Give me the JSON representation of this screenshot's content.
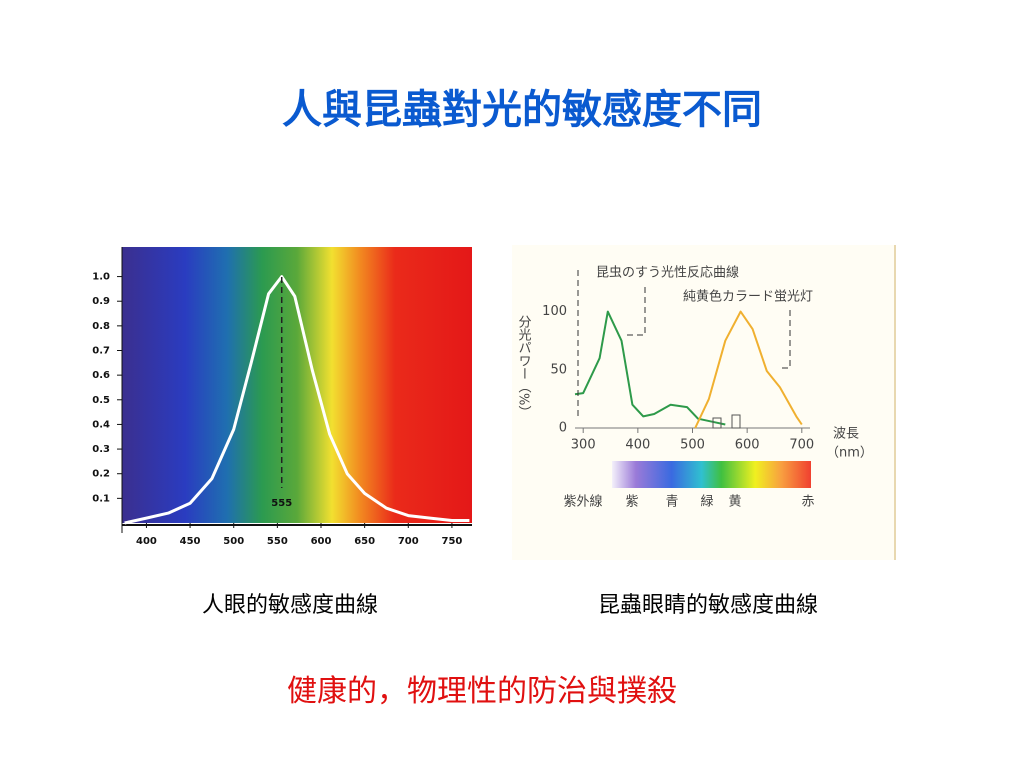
{
  "slide": {
    "title": "人與昆蟲對光的敏感度不同",
    "captions": [
      "人眼的敏感度曲線",
      "昆蟲眼睛的敏感度曲線"
    ],
    "footer": "健康的，物理性的防治與撲殺"
  },
  "chart_data": [
    {
      "type": "line",
      "x": [
        375,
        400,
        425,
        450,
        475,
        500,
        520,
        540,
        555,
        570,
        590,
        610,
        630,
        650,
        675,
        700,
        725,
        750,
        770
      ],
      "series": [
        {
          "color": "#ffffff",
          "values": [
            0.0,
            0.02,
            0.04,
            0.08,
            0.18,
            0.38,
            0.65,
            0.93,
            1.0,
            0.92,
            0.62,
            0.36,
            0.2,
            0.12,
            0.06,
            0.03,
            0.02,
            0.01,
            0.01
          ]
        }
      ],
      "marker_x": 555,
      "xlim": [
        372,
        773
      ],
      "ylim": [
        0,
        1.12
      ],
      "xticks": [
        400,
        450,
        500,
        550,
        600,
        650,
        700,
        750
      ],
      "yticks": [
        0.1,
        0.2,
        0.3,
        0.4,
        0.5,
        0.6,
        0.7,
        0.8,
        0.9,
        {
          "value": 1,
          "label": "1.0"
        }
      ]
    },
    {
      "type": "line",
      "series": [
        {
          "name": "昆虫のすう光性反応曲線",
          "color": "#2e9a4a",
          "x": [
            285,
            300,
            330,
            345,
            370,
            390,
            410,
            430,
            460,
            490,
            510,
            540,
            560
          ],
          "values": [
            29,
            30,
            60,
            100,
            75,
            20,
            10,
            12,
            20,
            18,
            8,
            5,
            3
          ]
        },
        {
          "name": "純黄色カラード蛍光灯",
          "color": "#f0b030",
          "x": [
            505,
            530,
            560,
            588,
            610,
            636,
            660,
            690,
            700
          ],
          "values": [
            0,
            25,
            75,
            100,
            85,
            49,
            35,
            10,
            3
          ]
        }
      ],
      "ylabel": "分光パワー（%）",
      "xlabel": "波長",
      "xunit": "（nm）",
      "color_bar_labels": [
        "紫外線",
        "紫",
        "青",
        "緑",
        "黄",
        "赤"
      ],
      "xlim": [
        285,
        715
      ],
      "ylim": [
        0,
        110
      ],
      "xticks": [
        300,
        400,
        500,
        600,
        700
      ],
      "yticks": [
        0,
        50,
        100
      ]
    }
  ]
}
